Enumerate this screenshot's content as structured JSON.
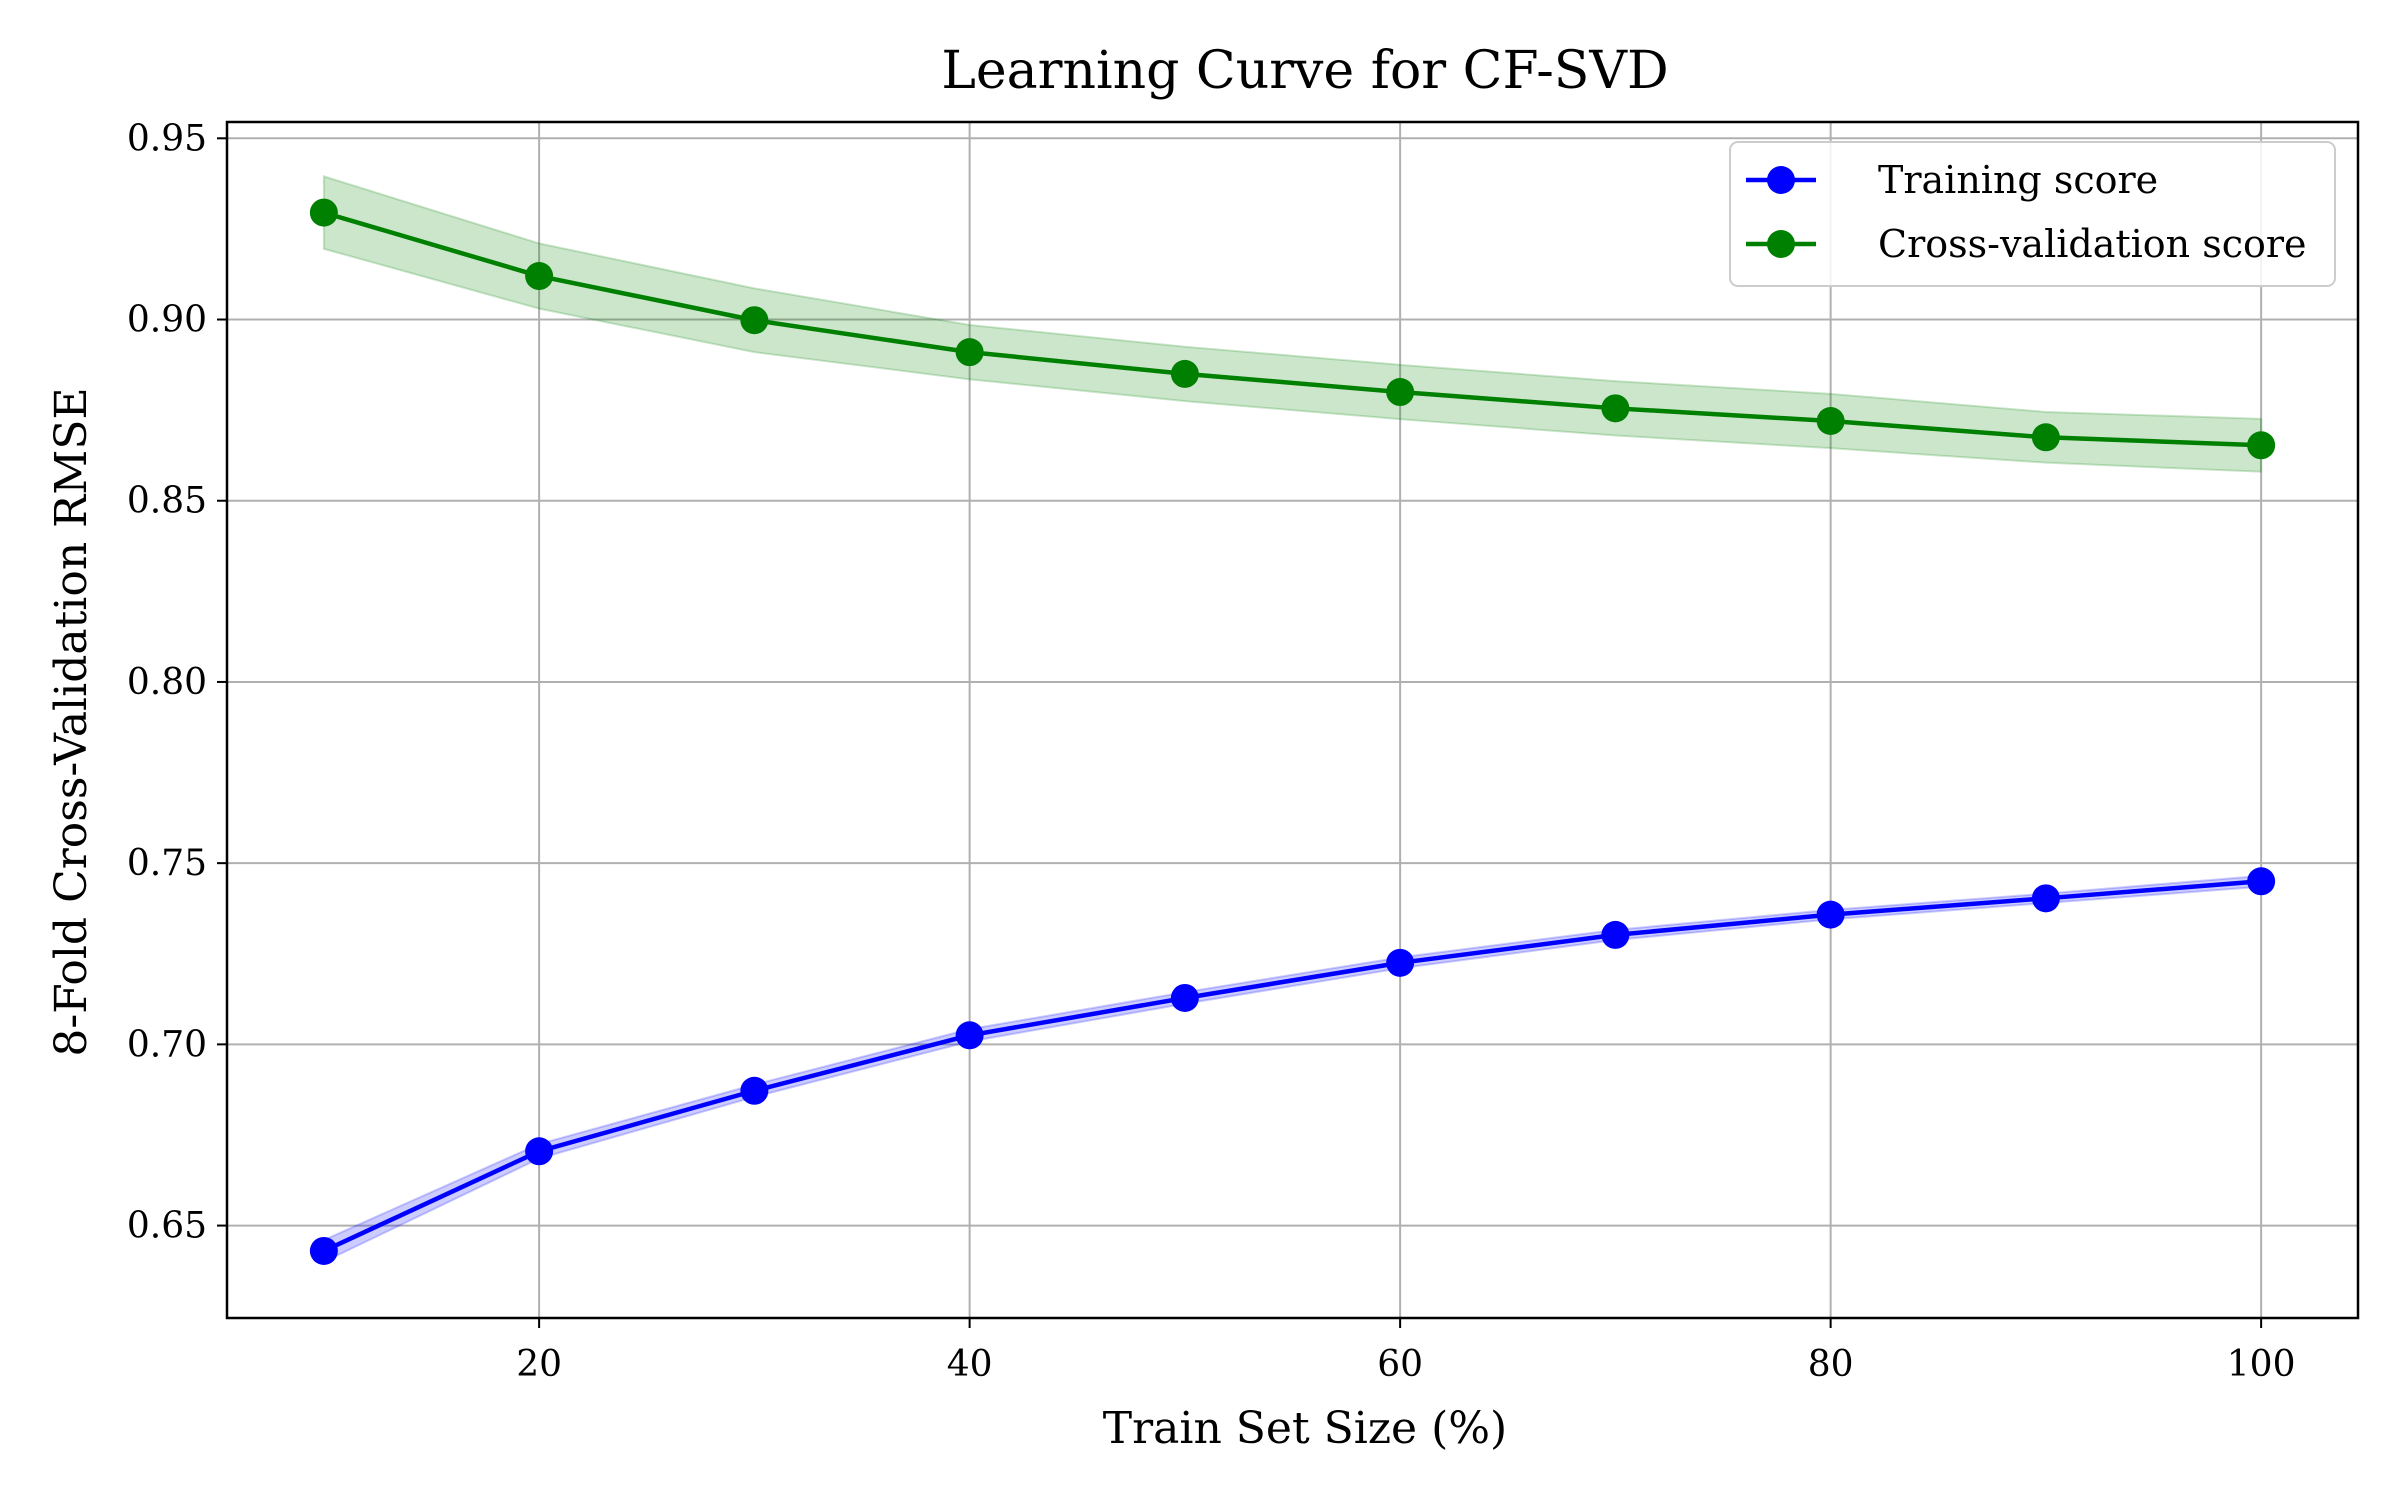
{
  "chart_data": {
    "type": "line",
    "title": "Learning Curve for CF-SVD",
    "xlabel": "Train Set Size (%)",
    "ylabel": "8-Fold Cross-Validation RMSE",
    "x": [
      10,
      20,
      30,
      40,
      50,
      60,
      70,
      80,
      90,
      100
    ],
    "xlim": [
      5.5,
      104.5
    ],
    "ylim": [
      0.6245,
      0.9545
    ],
    "xticks": [
      20,
      40,
      60,
      80,
      100
    ],
    "xtick_labels": [
      "20",
      "40",
      "60",
      "80",
      "100"
    ],
    "yticks": [
      0.65,
      0.7,
      0.75,
      0.8,
      0.85,
      0.9,
      0.95
    ],
    "ytick_labels": [
      "0.65",
      "0.70",
      "0.75",
      "0.80",
      "0.85",
      "0.90",
      "0.95"
    ],
    "grid": true,
    "legend_position": "top-right",
    "series": [
      {
        "name": "Training score",
        "color": "#0000ff",
        "band_color": "#0000ff",
        "values": [
          0.643,
          0.6705,
          0.6872,
          0.7025,
          0.7128,
          0.7225,
          0.7302,
          0.7358,
          0.7403,
          0.745
        ],
        "band_lower": [
          0.64,
          0.6685,
          0.6855,
          0.7008,
          0.7112,
          0.721,
          0.7288,
          0.7345,
          0.739,
          0.7435
        ],
        "band_upper": [
          0.646,
          0.6725,
          0.6889,
          0.7042,
          0.7144,
          0.724,
          0.7316,
          0.7371,
          0.7416,
          0.7465
        ]
      },
      {
        "name": "Cross-validation score",
        "color": "#008000",
        "band_color": "#008000",
        "values": [
          0.9295,
          0.912,
          0.8998,
          0.891,
          0.885,
          0.88,
          0.8755,
          0.872,
          0.8675,
          0.8653
        ],
        "band_lower": [
          0.9195,
          0.903,
          0.891,
          0.8835,
          0.8775,
          0.8725,
          0.868,
          0.8645,
          0.8605,
          0.858
        ],
        "band_upper": [
          0.9395,
          0.921,
          0.9086,
          0.8985,
          0.8925,
          0.8875,
          0.883,
          0.8795,
          0.8745,
          0.8726
        ]
      }
    ]
  }
}
